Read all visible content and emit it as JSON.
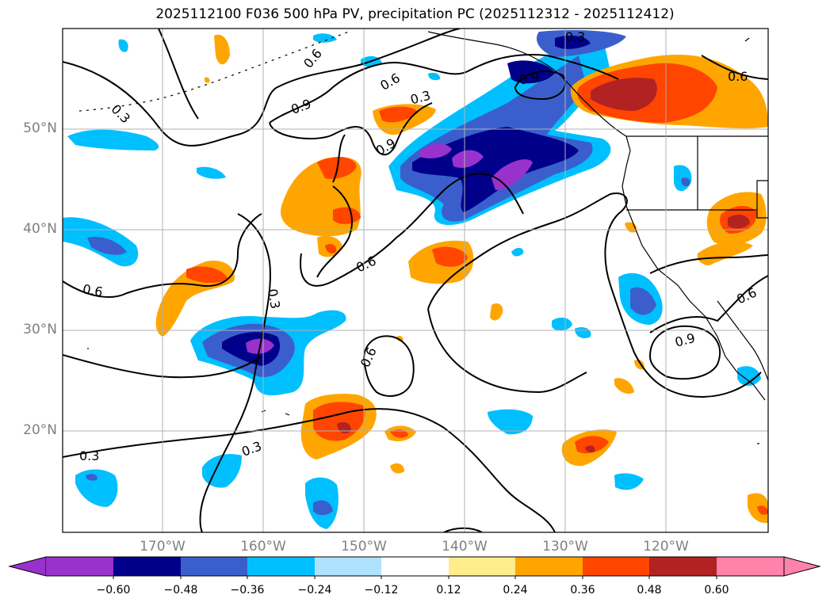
{
  "title": "2025112100 F036 500 hPa PV, precipitation PC (2025112312 - 2025112412)",
  "lat_labels": [
    "50°N",
    "40°N",
    "30°N",
    "20°N"
  ],
  "lon_labels": [
    "170°W",
    "160°W",
    "150°W",
    "140°W",
    "130°W",
    "120°W"
  ],
  "contour_labels": [
    "0.3",
    "0.6",
    "0.9"
  ],
  "colorbar": {
    "ticks": [
      "−0.60",
      "−0.48",
      "−0.36",
      "−0.24",
      "−0.12",
      "0.12",
      "0.24",
      "0.36",
      "0.48",
      "0.60"
    ],
    "colors": [
      "#9932cc",
      "#00008b",
      "#3a5fcd",
      "#00bfff",
      "#b0e2ff",
      "#ffffff",
      "#ffec8b",
      "#ffa500",
      "#ff4500",
      "#b22222",
      "#ff82ab"
    ]
  }
}
